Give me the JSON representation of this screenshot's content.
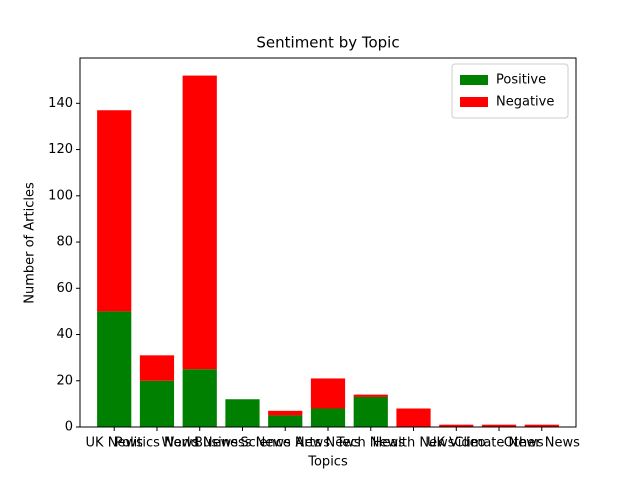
{
  "chart_data": {
    "type": "stacked-bar",
    "title": "Sentiment by Topic",
    "xlabel": "Topics",
    "ylabel": "Number of Articles",
    "categories": [
      "UK News",
      "Politics News",
      "World News",
      "Business News",
      "Science News",
      "Arts News",
      "Tech News",
      "Health News",
      "UK Video",
      "Climate News",
      "Other News"
    ],
    "series": [
      {
        "name": "Positive",
        "color": "#008000",
        "values": [
          50,
          20,
          25,
          12,
          5,
          8,
          13,
          0,
          0,
          0,
          0
        ]
      },
      {
        "name": "Negative",
        "color": "#ff0000",
        "values": [
          87,
          11,
          127,
          0,
          2,
          13,
          1,
          8,
          1,
          1,
          1
        ]
      }
    ],
    "ylim": [
      0,
      159.6
    ],
    "yticks": [
      0,
      20,
      40,
      60,
      80,
      100,
      120,
      140
    ],
    "legend": "upper right",
    "grid": false
  }
}
